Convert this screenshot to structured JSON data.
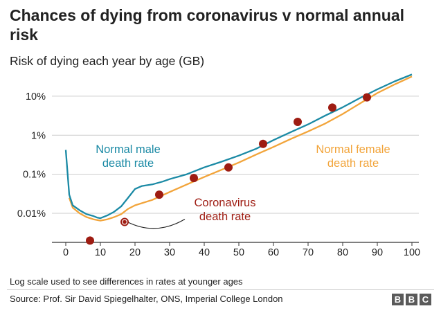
{
  "title": "Chances of dying from coronavirus v normal annual risk",
  "subtitle": "Risk of dying each year by age (GB)",
  "footnote": "Log scale used to see differences in rates at younger ages",
  "source": "Source: Prof. Sir David Spiegelhalter, ONS, Imperial College London",
  "brand_letters": [
    "B",
    "B",
    "C"
  ],
  "colors": {
    "male": "#1b8aa5",
    "female": "#f2a43a",
    "coronavirus": "#9e1c12",
    "grid": "#cccccc",
    "text": "#222222"
  },
  "chart_data": {
    "type": "line",
    "title": "Chances of dying from coronavirus v normal annual risk",
    "subtitle": "Risk of dying each year by age (GB)",
    "xlabel": "",
    "ylabel": "",
    "x_ticks": [
      0,
      10,
      20,
      30,
      40,
      50,
      60,
      70,
      80,
      90,
      100
    ],
    "y_scale": "log",
    "y_ticks": [
      {
        "value": 0.01,
        "label": "0.01%"
      },
      {
        "value": 0.1,
        "label": "0.1%"
      },
      {
        "value": 1,
        "label": "1%"
      },
      {
        "value": 10,
        "label": "10%"
      }
    ],
    "xlim": [
      -4,
      102
    ],
    "ylim": [
      0.0018,
      30
    ],
    "grid": "horizontal",
    "series": [
      {
        "name": "Normal male death rate",
        "kind": "line",
        "color": "#1b8aa5",
        "points": [
          [
            0,
            0.42
          ],
          [
            1,
            0.03
          ],
          [
            2,
            0.016
          ],
          [
            4,
            0.012
          ],
          [
            6,
            0.0095
          ],
          [
            8,
            0.0085
          ],
          [
            9,
            0.0078
          ],
          [
            10,
            0.0075
          ],
          [
            12,
            0.0088
          ],
          [
            14,
            0.011
          ],
          [
            16,
            0.015
          ],
          [
            18,
            0.025
          ],
          [
            20,
            0.042
          ],
          [
            22,
            0.05
          ],
          [
            25,
            0.055
          ],
          [
            28,
            0.065
          ],
          [
            30,
            0.075
          ],
          [
            35,
            0.1
          ],
          [
            40,
            0.15
          ],
          [
            45,
            0.21
          ],
          [
            50,
            0.3
          ],
          [
            55,
            0.45
          ],
          [
            60,
            0.75
          ],
          [
            65,
            1.2
          ],
          [
            70,
            1.9
          ],
          [
            75,
            3.2
          ],
          [
            80,
            5.2
          ],
          [
            85,
            9.0
          ],
          [
            90,
            15.0
          ],
          [
            95,
            24.0
          ],
          [
            100,
            36.0
          ]
        ]
      },
      {
        "name": "Normal female death rate",
        "kind": "line",
        "color": "#f2a43a",
        "points": [
          [
            1,
            0.025
          ],
          [
            2,
            0.014
          ],
          [
            4,
            0.01
          ],
          [
            6,
            0.008
          ],
          [
            8,
            0.007
          ],
          [
            10,
            0.0065
          ],
          [
            12,
            0.007
          ],
          [
            14,
            0.008
          ],
          [
            16,
            0.0095
          ],
          [
            18,
            0.013
          ],
          [
            20,
            0.016
          ],
          [
            25,
            0.022
          ],
          [
            30,
            0.035
          ],
          [
            35,
            0.055
          ],
          [
            40,
            0.085
          ],
          [
            45,
            0.13
          ],
          [
            50,
            0.2
          ],
          [
            55,
            0.32
          ],
          [
            60,
            0.5
          ],
          [
            65,
            0.8
          ],
          [
            70,
            1.25
          ],
          [
            75,
            2.0
          ],
          [
            80,
            3.5
          ],
          [
            85,
            6.5
          ],
          [
            90,
            12.0
          ],
          [
            95,
            20.0
          ],
          [
            100,
            32.0
          ]
        ]
      },
      {
        "name": "Coronavirus death rate",
        "kind": "points",
        "color": "#9e1c12",
        "points": [
          [
            7,
            0.002
          ],
          [
            17,
            0.006
          ],
          [
            27,
            0.03
          ],
          [
            37,
            0.08
          ],
          [
            47,
            0.15
          ],
          [
            57,
            0.6
          ],
          [
            67,
            2.2
          ],
          [
            77,
            5.1
          ],
          [
            87,
            9.3
          ]
        ]
      }
    ],
    "annotations": [
      {
        "lines": [
          "Normal male",
          "death rate"
        ],
        "series": "Normal male death rate"
      },
      {
        "lines": [
          "Normal female",
          "death rate"
        ],
        "series": "Normal female death rate"
      },
      {
        "lines": [
          "Coronavirus",
          "death rate"
        ],
        "series": "Coronavirus death rate"
      }
    ]
  }
}
